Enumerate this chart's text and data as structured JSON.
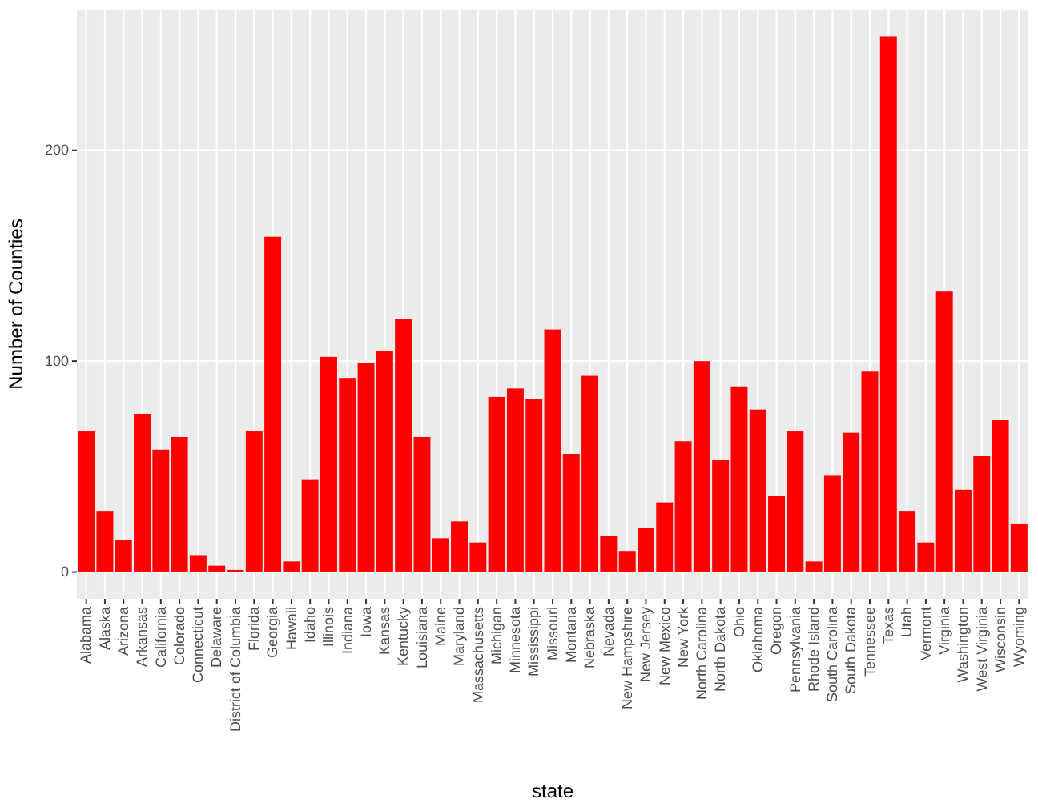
{
  "chart_data": {
    "type": "bar",
    "xlabel": "state",
    "ylabel": "Number of Counties",
    "categories": [
      "Alabama",
      "Alaska",
      "Arizona",
      "Arkansas",
      "California",
      "Colorado",
      "Connecticut",
      "Delaware",
      "District of Columbia",
      "Florida",
      "Georgia",
      "Hawaii",
      "Idaho",
      "Illinois",
      "Indiana",
      "Iowa",
      "Kansas",
      "Kentucky",
      "Louisiana",
      "Maine",
      "Maryland",
      "Massachusetts",
      "Michigan",
      "Minnesota",
      "Mississippi",
      "Missouri",
      "Montana",
      "Nebraska",
      "Nevada",
      "New Hampshire",
      "New Jersey",
      "New Mexico",
      "New York",
      "North Carolina",
      "North Dakota",
      "Ohio",
      "Oklahoma",
      "Oregon",
      "Pennsylvania",
      "Rhode Island",
      "South Carolina",
      "South Dakota",
      "Tennessee",
      "Texas",
      "Utah",
      "Vermont",
      "Virginia",
      "Washington",
      "West Virginia",
      "Wisconsin",
      "Wyoming"
    ],
    "values": [
      67,
      29,
      15,
      75,
      58,
      64,
      8,
      3,
      1,
      67,
      159,
      5,
      44,
      102,
      92,
      99,
      105,
      120,
      64,
      16,
      24,
      14,
      83,
      87,
      82,
      115,
      56,
      93,
      17,
      10,
      21,
      33,
      62,
      100,
      53,
      88,
      77,
      36,
      67,
      5,
      46,
      66,
      95,
      254,
      29,
      14,
      133,
      39,
      55,
      72,
      23
    ],
    "color": "#ff0000",
    "ylim": [
      -12.7,
      266.7
    ],
    "yticks": [
      0,
      100,
      200
    ],
    "grid": true
  }
}
